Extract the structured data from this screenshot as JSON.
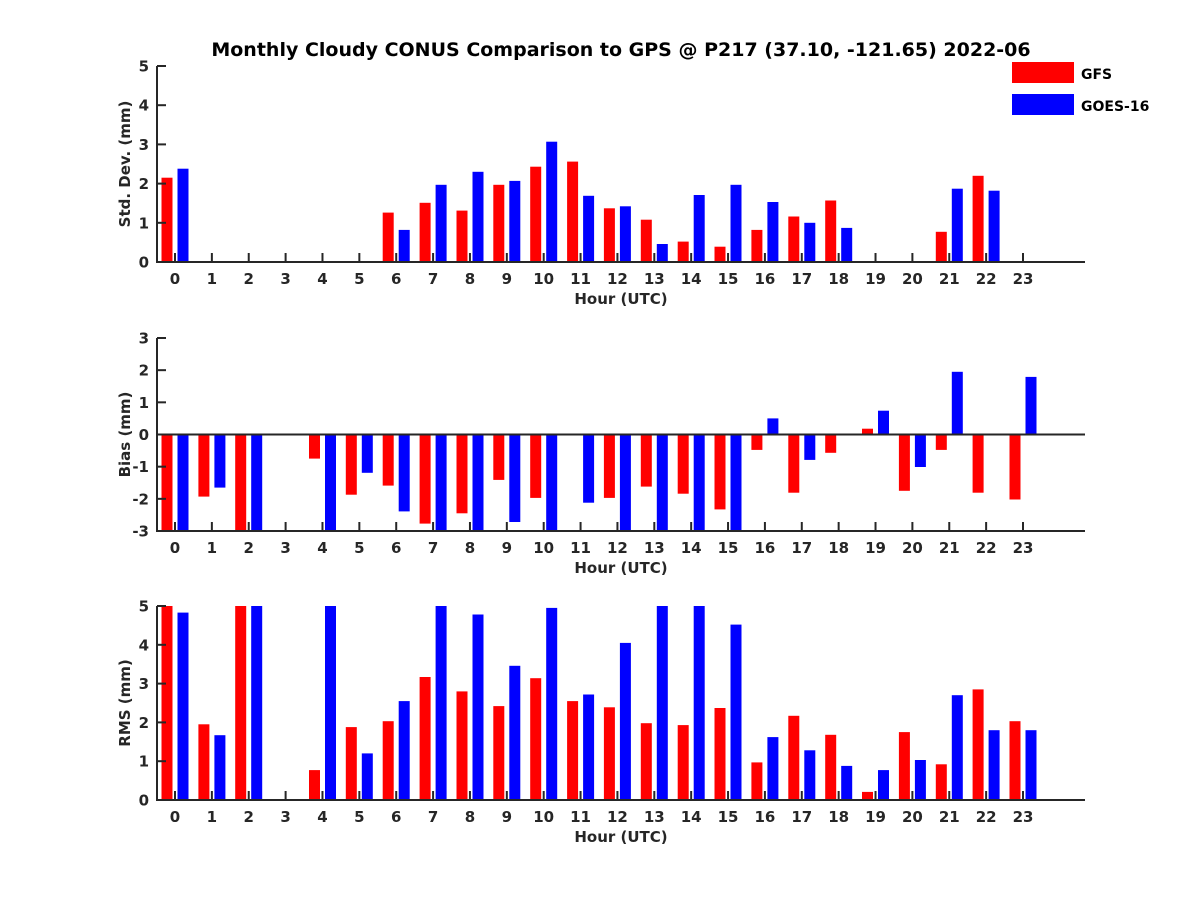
{
  "chart_data": {
    "title": "Monthly Cloudy CONUS Comparison to GPS @ P217 (37.10, -121.65) 2022-06",
    "legend": {
      "placement": "top-right",
      "entries": [
        {
          "name": "GFS",
          "color": "#ff0000"
        },
        {
          "name": "GOES-16",
          "color": "#0000ff"
        }
      ]
    },
    "panels": [
      {
        "type": "bar",
        "ylabel": "Std. Dev. (mm)",
        "xlabel": "Hour (UTC)",
        "ylim": [
          0,
          5
        ],
        "yticks": [
          0,
          1,
          2,
          3,
          4,
          5
        ],
        "categories": [
          "0",
          "1",
          "2",
          "3",
          "4",
          "5",
          "6",
          "7",
          "8",
          "9",
          "10",
          "11",
          "12",
          "13",
          "14",
          "15",
          "16",
          "17",
          "18",
          "19",
          "20",
          "21",
          "22",
          "23"
        ],
        "series": [
          {
            "name": "GFS",
            "values": [
              2.15,
              null,
              null,
              null,
              null,
              null,
              1.26,
              1.51,
              1.31,
              1.97,
              2.43,
              2.56,
              1.37,
              1.08,
              0.52,
              0.39,
              0.82,
              1.16,
              1.57,
              null,
              null,
              0.77,
              2.2,
              null
            ]
          },
          {
            "name": "GOES-16",
            "values": [
              2.38,
              null,
              null,
              null,
              null,
              null,
              0.82,
              1.97,
              2.3,
              2.07,
              3.07,
              1.69,
              1.42,
              0.46,
              1.71,
              1.97,
              1.53,
              1.0,
              0.87,
              null,
              null,
              1.87,
              1.82,
              null
            ]
          }
        ]
      },
      {
        "type": "bar",
        "ylabel": "Bias (mm)",
        "xlabel": "Hour (UTC)",
        "ylim": [
          -3,
          3
        ],
        "yticks": [
          -3,
          -2,
          -1,
          0,
          1,
          2,
          3
        ],
        "categories": [
          "0",
          "1",
          "2",
          "3",
          "4",
          "5",
          "6",
          "7",
          "8",
          "9",
          "10",
          "11",
          "12",
          "13",
          "14",
          "15",
          "16",
          "17",
          "18",
          "19",
          "20",
          "21",
          "22",
          "23"
        ],
        "series": [
          {
            "name": "GFS",
            "values": [
              -3.0,
              -1.93,
              -3.0,
              null,
              -0.75,
              -1.87,
              -1.59,
              -2.77,
              -2.45,
              -1.41,
              -1.97,
              -0.03,
              -1.97,
              -1.62,
              -1.84,
              -2.33,
              -0.48,
              -1.81,
              -0.57,
              0.18,
              -1.75,
              -0.48,
              -1.81,
              -2.02
            ]
          },
          {
            "name": "GOES-16",
            "values": [
              -3.0,
              -1.65,
              -3.0,
              null,
              -3.0,
              -1.19,
              -2.39,
              -3.0,
              -3.0,
              -2.72,
              -3.0,
              -2.12,
              -3.0,
              -3.0,
              -3.0,
              -3.0,
              0.5,
              -0.79,
              null,
              0.74,
              -1.01,
              1.95,
              0.02,
              1.79
            ]
          }
        ]
      },
      {
        "type": "bar",
        "ylabel": "RMS (mm)",
        "xlabel": "Hour (UTC)",
        "ylim": [
          0,
          5
        ],
        "yticks": [
          0,
          1,
          2,
          3,
          4,
          5
        ],
        "categories": [
          "0",
          "1",
          "2",
          "3",
          "4",
          "5",
          "6",
          "7",
          "8",
          "9",
          "10",
          "11",
          "12",
          "13",
          "14",
          "15",
          "16",
          "17",
          "18",
          "19",
          "20",
          "21",
          "22",
          "23"
        ],
        "series": [
          {
            "name": "GFS",
            "values": [
              5.0,
              1.95,
              5.0,
              null,
              0.77,
              1.88,
              2.03,
              3.17,
              2.8,
              2.42,
              3.14,
              2.55,
              2.39,
              1.98,
              1.93,
              2.37,
              0.97,
              2.17,
              1.68,
              0.21,
              1.75,
              0.92,
              2.85,
              2.03
            ]
          },
          {
            "name": "GOES-16",
            "values": [
              4.83,
              1.67,
              5.0,
              null,
              5.0,
              1.2,
              2.55,
              5.0,
              4.78,
              3.46,
              4.95,
              2.72,
              4.05,
              5.0,
              5.0,
              4.52,
              1.62,
              1.28,
              0.88,
              0.77,
              1.03,
              2.7,
              1.8,
              1.8
            ]
          }
        ]
      }
    ]
  }
}
